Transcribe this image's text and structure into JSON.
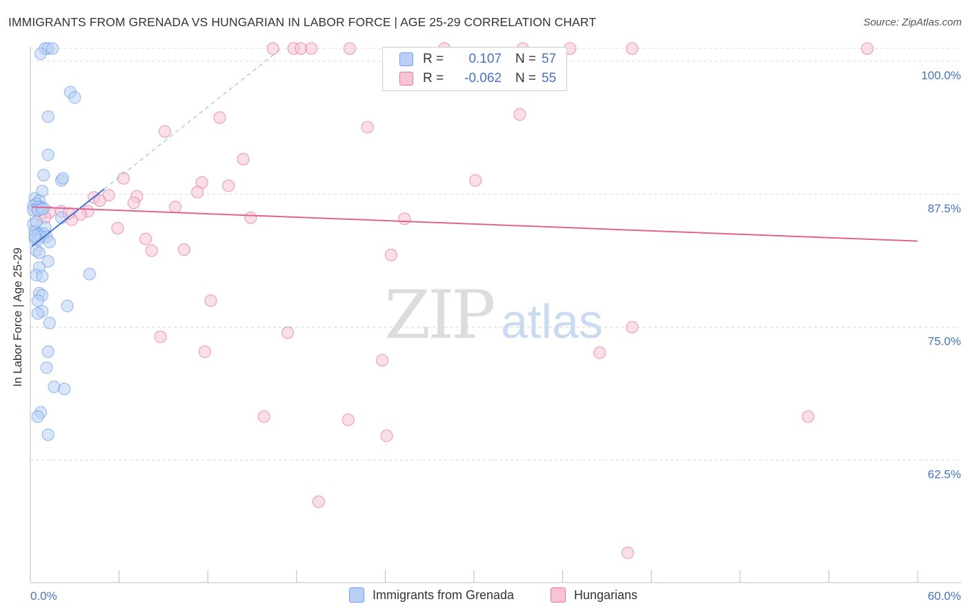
{
  "title": "IMMIGRANTS FROM GRENADA VS HUNGARIAN IN LABOR FORCE | AGE 25-29 CORRELATION CHART",
  "source": "Source: ZipAtlas.com",
  "watermark": {
    "zip": "ZIP",
    "atlas": "atlas"
  },
  "legend": {
    "r_label": "R =",
    "n_label": "N =",
    "series": [
      {
        "name": "Immigrants from Grenada",
        "r": "0.107",
        "n": "57",
        "color": "#6f9fe8",
        "fill": "#b9d0f4"
      },
      {
        "name": "Hungarians",
        "r": "-0.062",
        "n": "55",
        "color": "#e8739e",
        "fill": "#f7c4d6"
      }
    ]
  },
  "chart_data": {
    "type": "scatter",
    "xlabel": "",
    "ylabel": "In Labor Force | Age 25-29",
    "xlim": [
      0,
      60
    ],
    "ylim": [
      51,
      102
    ],
    "x_tick_labels": [
      "0.0%",
      "60.0%"
    ],
    "y_ticks": [
      62.5,
      75.0,
      87.5,
      100.0
    ],
    "y_tick_labels": [
      "62.5%",
      "75.0%",
      "87.5%",
      "100.0%"
    ],
    "series": [
      {
        "name": "Immigrants from Grenada",
        "trend": {
          "x": [
            0.1,
            5.0
          ],
          "y": [
            82.6,
            88.0
          ]
        },
        "points": [
          [
            1.0,
            101.2
          ],
          [
            1.2,
            101.2
          ],
          [
            1.5,
            101.2
          ],
          [
            0.7,
            100.7
          ],
          [
            2.7,
            97.1
          ],
          [
            3.0,
            96.6
          ],
          [
            1.2,
            94.8
          ],
          [
            1.2,
            91.2
          ],
          [
            0.9,
            89.3
          ],
          [
            2.1,
            88.8
          ],
          [
            2.2,
            89.0
          ],
          [
            0.8,
            87.8
          ],
          [
            0.3,
            87.1
          ],
          [
            0.6,
            86.9
          ],
          [
            0.4,
            86.6
          ],
          [
            0.2,
            86.4
          ],
          [
            0.7,
            86.3
          ],
          [
            0.5,
            86.3
          ],
          [
            0.9,
            86.2
          ],
          [
            0.2,
            86.0
          ],
          [
            0.5,
            86.0
          ],
          [
            0.8,
            86.1
          ],
          [
            2.1,
            85.3
          ],
          [
            0.2,
            84.7
          ],
          [
            1.0,
            84.4
          ],
          [
            0.3,
            84.0
          ],
          [
            0.6,
            83.8
          ],
          [
            0.9,
            83.8
          ],
          [
            0.5,
            83.7
          ],
          [
            0.7,
            83.5
          ],
          [
            0.3,
            83.3
          ],
          [
            1.1,
            83.5
          ],
          [
            0.5,
            83.2
          ],
          [
            1.3,
            83.0
          ],
          [
            0.4,
            82.2
          ],
          [
            0.6,
            82.0
          ],
          [
            1.2,
            81.2
          ],
          [
            0.6,
            80.6
          ],
          [
            4.0,
            80.0
          ],
          [
            0.4,
            79.9
          ],
          [
            0.8,
            79.8
          ],
          [
            0.6,
            78.2
          ],
          [
            0.8,
            78.0
          ],
          [
            0.5,
            77.5
          ],
          [
            2.5,
            77.0
          ],
          [
            0.8,
            76.5
          ],
          [
            0.5,
            76.3
          ],
          [
            1.3,
            75.4
          ],
          [
            1.2,
            72.7
          ],
          [
            1.1,
            71.2
          ],
          [
            1.6,
            69.4
          ],
          [
            2.3,
            69.2
          ],
          [
            0.7,
            67.0
          ],
          [
            0.5,
            66.6
          ],
          [
            1.2,
            64.9
          ],
          [
            0.4,
            84.9
          ],
          [
            0.3,
            83.6
          ]
        ]
      },
      {
        "name": "Hungarians",
        "trend": {
          "x": [
            0.1,
            60.0
          ],
          "y": [
            86.3,
            83.1
          ]
        },
        "points": [
          [
            16.4,
            101.2
          ],
          [
            17.8,
            101.2
          ],
          [
            18.3,
            101.2
          ],
          [
            19.0,
            101.2
          ],
          [
            21.6,
            101.2
          ],
          [
            28.0,
            101.2
          ],
          [
            33.3,
            101.2
          ],
          [
            36.5,
            101.2
          ],
          [
            40.7,
            101.2
          ],
          [
            56.6,
            101.2
          ],
          [
            33.1,
            95.0
          ],
          [
            12.8,
            94.7
          ],
          [
            22.8,
            93.8
          ],
          [
            9.1,
            93.4
          ],
          [
            14.4,
            90.8
          ],
          [
            6.3,
            89.0
          ],
          [
            30.1,
            88.8
          ],
          [
            11.6,
            88.6
          ],
          [
            13.4,
            88.3
          ],
          [
            11.3,
            87.7
          ],
          [
            5.3,
            87.4
          ],
          [
            7.2,
            87.3
          ],
          [
            4.3,
            87.2
          ],
          [
            4.7,
            86.9
          ],
          [
            7.0,
            86.7
          ],
          [
            9.8,
            86.3
          ],
          [
            0.5,
            86.0
          ],
          [
            1.3,
            85.8
          ],
          [
            2.1,
            85.9
          ],
          [
            3.9,
            85.9
          ],
          [
            3.4,
            85.6
          ],
          [
            0.7,
            85.6
          ],
          [
            2.8,
            85.1
          ],
          [
            14.9,
            85.3
          ],
          [
            25.3,
            85.2
          ],
          [
            5.9,
            84.3
          ],
          [
            7.8,
            83.3
          ],
          [
            8.2,
            82.2
          ],
          [
            10.4,
            82.3
          ],
          [
            24.4,
            81.8
          ],
          [
            12.2,
            77.5
          ],
          [
            40.7,
            75.0
          ],
          [
            17.4,
            74.5
          ],
          [
            8.8,
            74.1
          ],
          [
            11.8,
            72.7
          ],
          [
            38.5,
            72.6
          ],
          [
            23.8,
            71.9
          ],
          [
            52.6,
            66.6
          ],
          [
            15.8,
            66.6
          ],
          [
            21.5,
            66.3
          ],
          [
            24.1,
            64.8
          ],
          [
            19.5,
            58.6
          ],
          [
            40.4,
            53.8
          ],
          [
            1.0,
            85.3
          ],
          [
            2.6,
            85.7
          ]
        ]
      }
    ]
  }
}
